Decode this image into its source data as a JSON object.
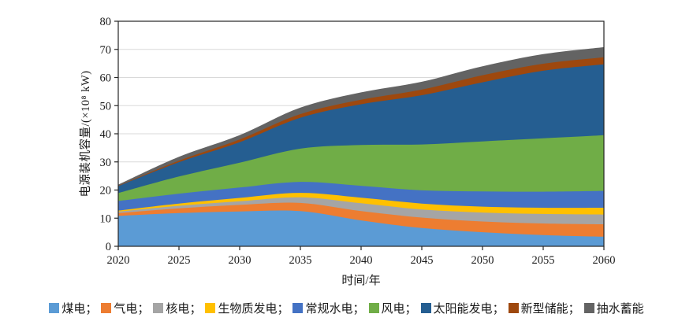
{
  "chart_data": {
    "type": "area",
    "stacked": true,
    "title": "",
    "xlabel": "时间/年",
    "ylabel": "电源装机容量/(×10⁸ kW)",
    "x": [
      2020,
      2025,
      2030,
      2035,
      2040,
      2045,
      2050,
      2055,
      2060
    ],
    "xlim": [
      2020,
      2060
    ],
    "ylim": [
      0,
      80
    ],
    "yticks": [
      0,
      10,
      20,
      30,
      40,
      50,
      60,
      70,
      80
    ],
    "grid": "horizontal",
    "legend_position": "bottom",
    "legend_separator": "；",
    "series": [
      {
        "id": "coal",
        "name": "煤电",
        "color": "#5B9BD5",
        "values": [
          10.8,
          11.8,
          12.4,
          12.5,
          9.2,
          6.5,
          5.0,
          4.0,
          3.4
        ]
      },
      {
        "id": "gas",
        "name": "气电",
        "color": "#ED7D31",
        "values": [
          1.0,
          1.7,
          2.3,
          2.9,
          3.3,
          3.7,
          3.8,
          4.1,
          4.4
        ]
      },
      {
        "id": "nuclear",
        "name": "核电",
        "color": "#A5A5A5",
        "values": [
          0.5,
          0.9,
          1.3,
          2.0,
          2.8,
          2.9,
          3.2,
          3.4,
          3.5
        ]
      },
      {
        "id": "biomass",
        "name": "生物质发电",
        "color": "#FFC000",
        "values": [
          0.4,
          0.8,
          1.2,
          1.6,
          2.0,
          2.1,
          2.1,
          2.2,
          2.4
        ]
      },
      {
        "id": "hydro",
        "name": "常规水电",
        "color": "#4472C4",
        "values": [
          3.4,
          3.5,
          3.7,
          3.9,
          4.2,
          4.7,
          5.4,
          5.7,
          6.0
        ]
      },
      {
        "id": "wind",
        "name": "风电",
        "color": "#70AD47",
        "values": [
          2.8,
          6.1,
          8.8,
          11.8,
          14.5,
          16.3,
          17.8,
          19.0,
          19.8
        ]
      },
      {
        "id": "solar",
        "name": "太阳能发电",
        "color": "#255E91",
        "values": [
          2.5,
          5.1,
          7.3,
          11.0,
          14.5,
          17.5,
          21.0,
          24.0,
          25.2
        ]
      },
      {
        "id": "new-storage",
        "name": "新型储能",
        "color": "#9E480E",
        "values": [
          0.1,
          0.5,
          1.0,
          1.3,
          1.6,
          2.0,
          2.5,
          2.5,
          2.5
        ]
      },
      {
        "id": "pumped-storage",
        "name": "抽水蓄能",
        "color": "#636363",
        "values": [
          0.4,
          1.4,
          1.5,
          2.3,
          2.6,
          2.8,
          3.2,
          3.4,
          3.6
        ]
      }
    ]
  },
  "colors": {
    "background": "#FFFFFF",
    "gridline": "#D9D9D9",
    "axis": "#262626",
    "text": "#1A1A1A"
  }
}
